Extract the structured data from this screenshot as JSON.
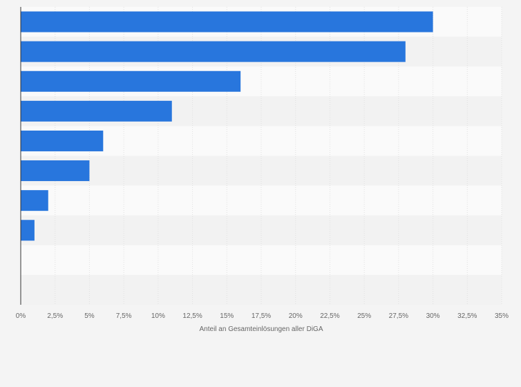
{
  "colors": {
    "page_background": "#f4f4f4",
    "band_light": "#fafafa",
    "band_dark": "#f2f2f2",
    "bar": "#2876dd",
    "grid": "#e0e0e0",
    "axis": "#333333",
    "text": "#666666"
  },
  "chart_data": {
    "type": "bar",
    "orientation": "horizontal",
    "title": "",
    "xlabel": "Anteil an Gesamteinlösungen aller DiGA",
    "ylabel": "",
    "categories": [
      "",
      "",
      "",
      "",
      "",
      "",
      "",
      "",
      "",
      ""
    ],
    "values": [
      30,
      28,
      16,
      11,
      6,
      5,
      2,
      1,
      0,
      0
    ],
    "xlim": [
      0,
      35
    ],
    "ticks": [
      0,
      2.5,
      5,
      7.5,
      10,
      12.5,
      15,
      17.5,
      20,
      22.5,
      25,
      27.5,
      30,
      32.5,
      35
    ],
    "tick_labels": [
      "0%",
      "2,5%",
      "5%",
      "7,5%",
      "10%",
      "12,5%",
      "15%",
      "17,5%",
      "20%",
      "22,5%",
      "25%",
      "27,5%",
      "30%",
      "32,5%",
      "35%"
    ],
    "grid": true,
    "legend": "none"
  }
}
